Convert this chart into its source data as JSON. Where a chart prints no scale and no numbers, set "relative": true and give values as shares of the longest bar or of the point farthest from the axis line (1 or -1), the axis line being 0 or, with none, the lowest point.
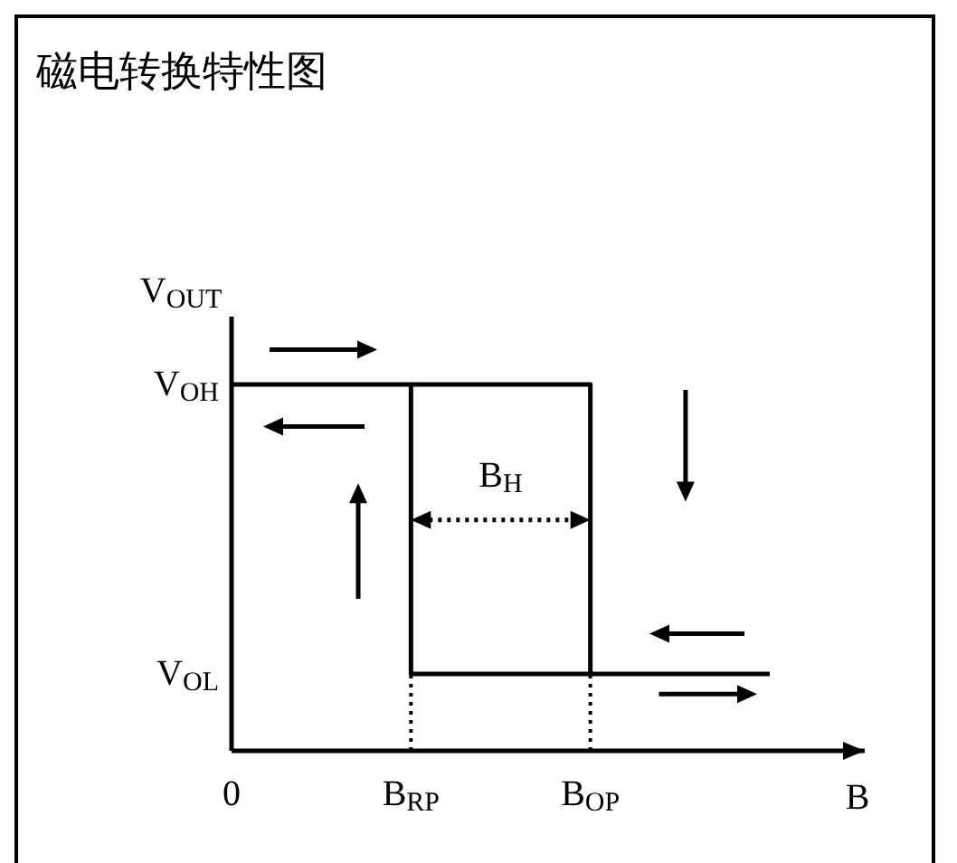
{
  "chart_data": {
    "type": "step",
    "title": "磁电转换特性图",
    "xlabel": "B",
    "ylabel": "V$_{OUT}$",
    "relative": true,
    "marker": "none",
    "categories": [
      "0",
      "B$_{RP}$",
      "B$_{OP}$",
      null
    ],
    "series": [
      {
        "color": "#000000",
        "values": [
          null,
          1,
          0.21,
          0.21
        ]
      },
      {
        "color": "#000000",
        "values": [
          1,
          0.21,
          0.21,
          null
        ]
      }
    ],
    "ref_lines": [
      {
        "axis": "x",
        "value": "B$_{RP}$",
        "color": "#000000",
        "line_style": "dotted"
      },
      {
        "axis": "x",
        "value": "B$_{OP}$",
        "color": "#000000",
        "line_style": "dotted"
      }
    ],
    "annotations": [
      "B$_{H}$",
      "V$_{OH}$",
      "V$_{OL}$"
    ]
  }
}
